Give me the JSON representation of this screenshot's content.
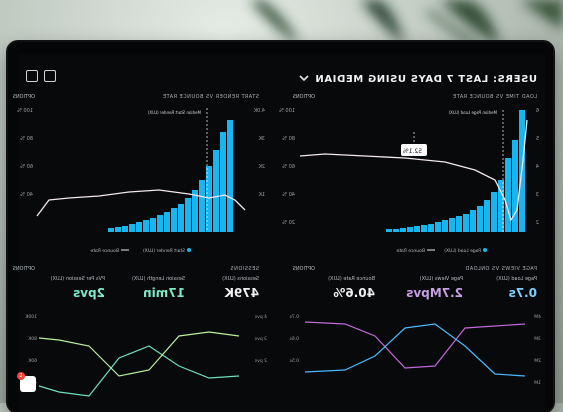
{
  "header": {
    "title": "USERS: LAST 7 DAYS USING MEDIAN"
  },
  "panels": {
    "left_top": {
      "label": "LOAD TIME VS BOUNCE RATE",
      "options": "OPTIONS",
      "legend_series": "Page Load (LUX)",
      "legend_bounce": "Bounce Rate",
      "callout": "52.1%",
      "median_label": "Median Page Load (LUX)"
    },
    "right_top": {
      "label": "START RENDER VS BOUNCE RATE",
      "options": "OPTIONS",
      "legend_series": "Start Render (LUX)",
      "legend_bounce": "Bounce Rate",
      "median_label": "Median Start Render (LUX)"
    },
    "left_bottom": {
      "label": "PAGE VIEWS VS ONLOAD",
      "options": "OPTIONS",
      "kpis": [
        {
          "label": "Page Load (LUX)",
          "value": "0.7s"
        },
        {
          "label": "Page Views (LUX)",
          "value": "2.7Mpvs"
        },
        {
          "label": "Bounce Rate (LUX)",
          "value": "40.6%"
        }
      ]
    },
    "right_bottom": {
      "label": "SESSIONS",
      "options": "OPTIONS",
      "kpis": [
        {
          "label": "Sessions (LUX)",
          "value": "479K"
        },
        {
          "label": "Session Length (LUX)",
          "value": "17min"
        },
        {
          "label": "PVs Per Session (LUX)",
          "value": "2pvs"
        }
      ]
    }
  },
  "badge": {
    "count": "2"
  },
  "colors": {
    "bar": "#17b6f0",
    "line": "#f2e8ee",
    "kpi_green": "#7fe8c7",
    "kpi_purple": "#c89ee4",
    "kpi_blue": "#7fcfff"
  }
}
